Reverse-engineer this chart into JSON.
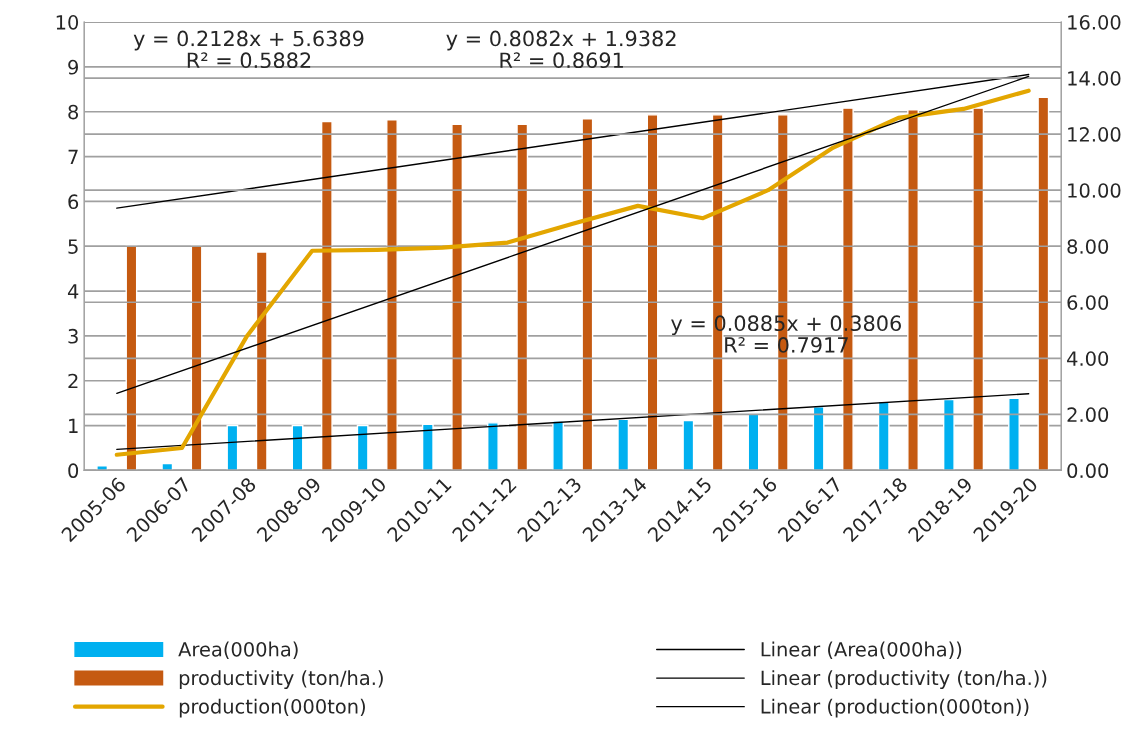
{
  "chart_data": {
    "type": "bar",
    "categories": [
      "2005-06",
      "2006-07",
      "2007-08",
      "2008-09",
      "2009-10",
      "2010-11",
      "2011-12",
      "2012-13",
      "2013-14",
      "2014-15",
      "2015-16",
      "2016-17",
      "2017-18",
      "2018-19",
      "2019-20"
    ],
    "series": [
      {
        "name": "Area(000ha)",
        "type": "bar",
        "color": "#00b0f0",
        "values": [
          0.1,
          0.15,
          1.0,
          1.0,
          1.0,
          1.03,
          1.06,
          1.1,
          1.14,
          1.11,
          1.26,
          1.42,
          1.54,
          1.58,
          1.61
        ]
      },
      {
        "name": "productivity (ton/ha.)",
        "type": "bar",
        "color": "#c55a11",
        "values": [
          5.0,
          5.0,
          4.87,
          7.78,
          7.82,
          7.72,
          7.72,
          7.84,
          7.93,
          7.93,
          7.93,
          8.08,
          8.04,
          8.08,
          8.32
        ]
      },
      {
        "name": "production(000ton)",
        "type": "line",
        "axis": "y2",
        "color": "#e3a600",
        "values": [
          0.56,
          0.8,
          4.8,
          7.84,
          7.87,
          7.95,
          8.13,
          8.8,
          9.44,
          9.0,
          10.0,
          11.52,
          12.58,
          12.9,
          13.55
        ]
      },
      {
        "name": "Linear (Area(000ha))",
        "type": "line",
        "color": "#000000",
        "values": [
          0.47,
          null,
          null,
          null,
          null,
          null,
          null,
          null,
          null,
          null,
          null,
          null,
          null,
          null,
          1.71
        ]
      },
      {
        "name": "Linear (productivity (ton/ha.))",
        "type": "line",
        "color": "#000000",
        "values": [
          5.85,
          null,
          null,
          null,
          null,
          null,
          null,
          null,
          null,
          null,
          null,
          null,
          null,
          null,
          8.83
        ]
      },
      {
        "name": "Linear (production(000ton))",
        "type": "line",
        "axis": "y2",
        "color": "#000000",
        "values": [
          2.75,
          null,
          null,
          null,
          null,
          null,
          null,
          null,
          null,
          null,
          null,
          null,
          null,
          null,
          14.06
        ]
      }
    ],
    "ylim": [
      0,
      10
    ],
    "yticks": [
      0,
      1,
      2,
      3,
      4,
      5,
      6,
      7,
      8,
      9,
      10
    ],
    "y2lim": [
      0,
      16
    ],
    "y2ticks": [
      {
        "value": 0,
        "label": "0.00"
      },
      {
        "value": 2,
        "label": "2.00"
      },
      {
        "value": 4,
        "label": "4.00"
      },
      {
        "value": 6,
        "label": "6.00"
      },
      {
        "value": 8,
        "label": "8.00"
      },
      {
        "value": 10,
        "label": "10.00"
      },
      {
        "value": 12,
        "label": "12.00"
      },
      {
        "value": 14,
        "label": "14.00"
      },
      {
        "value": 16,
        "label": "16.00"
      }
    ],
    "grid": "y",
    "legend": "bottom",
    "annotations": [
      "y = 0.2128x + 5.6389\nR² = 0.5882",
      "y = 0.8082x + 1.9382\nR² = 0.8691",
      "y = 0.0885x + 0.3806\nR² = 0.7917"
    ]
  }
}
